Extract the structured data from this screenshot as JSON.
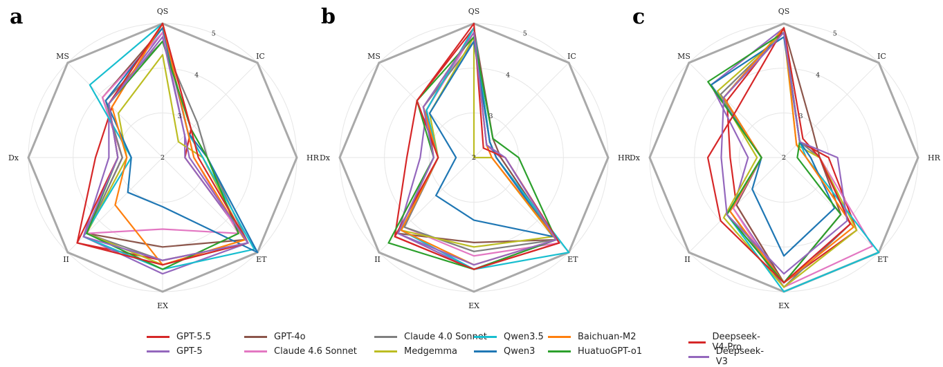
{
  "chart_data": [
    {
      "type": "radar",
      "panel": "a",
      "axes": [
        "QS",
        "IC",
        "HR",
        "ET",
        "EX",
        "II",
        "Dx",
        "MS"
      ],
      "radial_ticks": [
        "2",
        "3",
        "4",
        "5"
      ],
      "rlim": [
        2,
        5
      ],
      "grid": true,
      "series": [
        {
          "name": "GPT-5.5",
          "color": "#d62728",
          "values": [
            5.0,
            2.9,
            2.5,
            4.7,
            4.3,
            4.7,
            3.5,
            3.6
          ]
        },
        {
          "name": "GPT-5",
          "color": "#9467bd",
          "values": [
            4.8,
            2.7,
            2.5,
            4.7,
            4.6,
            4.5,
            3.2,
            3.7
          ]
        },
        {
          "name": "GPT-4o",
          "color": "#8c564b",
          "values": [
            4.9,
            2.8,
            2.9,
            4.6,
            4.0,
            4.4,
            2.9,
            3.9
          ]
        },
        {
          "name": "Claude 4.6 Sonnet",
          "color": "#e377c2",
          "values": [
            4.8,
            2.8,
            2.7,
            4.4,
            3.6,
            4.4,
            2.9,
            3.9
          ]
        },
        {
          "name": "Claude 4.0 Sonnet",
          "color": "#7f7f7f",
          "values": [
            4.6,
            3.1,
            3.0,
            4.7,
            4.3,
            4.4,
            2.9,
            3.8
          ]
        },
        {
          "name": "Medgemma",
          "color": "#bcbd22",
          "values": [
            4.3,
            2.5,
            2.9,
            4.6,
            4.4,
            4.4,
            2.8,
            3.4
          ]
        },
        {
          "name": "Qwen3.5",
          "color": "#17becf",
          "values": [
            5.0,
            2.8,
            2.9,
            4.9,
            4.5,
            4.5,
            2.7,
            4.3
          ]
        },
        {
          "name": "Qwen3",
          "color": "#1f77b4",
          "values": [
            4.9,
            2.8,
            3.0,
            5.0,
            3.1,
            3.1,
            2.7,
            3.8
          ]
        },
        {
          "name": "Baichuan-M2",
          "color": "#ff7f0e",
          "values": [
            5.0,
            2.8,
            2.7,
            4.6,
            4.4,
            3.5,
            2.8,
            3.6
          ]
        },
        {
          "name": "HuatuoGPT-o1",
          "color": "#2ca02c",
          "values": [
            4.6,
            2.9,
            3.0,
            4.4,
            4.5,
            4.4,
            3.0,
            3.7
          ]
        },
        {
          "name": "Deepseek-V4-Pro",
          "color": "#d62728",
          "values": [
            5.0,
            2.9,
            2.8,
            4.7,
            4.4,
            4.7,
            3.0,
            3.7
          ]
        },
        {
          "name": "Deepseek-V3",
          "color": "#9467bd",
          "values": [
            4.7,
            2.7,
            2.6,
            4.7,
            4.3,
            4.5,
            3.0,
            3.7
          ]
        }
      ]
    },
    {
      "type": "radar",
      "panel": "b",
      "axes": [
        "QS",
        "IC",
        "HR",
        "ET",
        "EX",
        "II",
        "Dx",
        "MS"
      ],
      "radial_ticks": [
        "2",
        "3",
        "4",
        "5"
      ],
      "rlim": [
        2,
        5
      ],
      "grid": true,
      "series": [
        {
          "name": "GPT-5.5",
          "color": "#d62728",
          "values": [
            4.9,
            2.5,
            2.5,
            4.7,
            4.5,
            4.5,
            3.5,
            3.8
          ]
        },
        {
          "name": "GPT-5",
          "color": "#9467bd",
          "values": [
            4.9,
            2.4,
            2.6,
            4.6,
            4.5,
            4.4,
            3.2,
            3.5
          ]
        },
        {
          "name": "GPT-4o",
          "color": "#8c564b",
          "values": [
            4.9,
            2.6,
            2.6,
            4.6,
            3.9,
            4.4,
            2.9,
            3.5
          ]
        },
        {
          "name": "Claude 4.6 Sonnet",
          "color": "#e377c2",
          "values": [
            4.8,
            2.4,
            2.4,
            4.7,
            4.2,
            4.2,
            2.8,
            3.5
          ]
        },
        {
          "name": "Claude 4.0 Sonnet",
          "color": "#7f7f7f",
          "values": [
            4.6,
            2.5,
            2.5,
            4.6,
            4.1,
            4.2,
            2.8,
            3.6
          ]
        },
        {
          "name": "Medgemma",
          "color": "#bcbd22",
          "values": [
            4.7,
            2.0,
            2.4,
            4.5,
            4.0,
            4.3,
            2.8,
            3.4
          ]
        },
        {
          "name": "Qwen3.5",
          "color": "#17becf",
          "values": [
            4.9,
            2.5,
            2.5,
            5.0,
            4.5,
            4.3,
            2.8,
            3.5
          ]
        },
        {
          "name": "Qwen3",
          "color": "#1f77b4",
          "values": [
            4.6,
            2.5,
            2.5,
            4.5,
            3.4,
            3.2,
            2.4,
            3.4
          ]
        },
        {
          "name": "Baichuan-M2",
          "color": "#ff7f0e",
          "values": [
            4.8,
            2.4,
            2.4,
            4.6,
            4.4,
            4.3,
            2.8,
            3.6
          ]
        },
        {
          "name": "HuatuoGPT-o1",
          "color": "#2ca02c",
          "values": [
            4.7,
            2.6,
            3.0,
            4.6,
            4.5,
            4.7,
            2.9,
            3.8
          ]
        },
        {
          "name": "Deepseek-V4-Pro",
          "color": "#d62728",
          "values": [
            5.0,
            2.3,
            2.7,
            4.7,
            4.5,
            4.5,
            2.8,
            3.8
          ]
        },
        {
          "name": "Deepseek-V3",
          "color": "#9467bd",
          "values": [
            4.8,
            2.4,
            2.7,
            4.6,
            4.4,
            4.4,
            2.9,
            3.6
          ]
        }
      ]
    },
    {
      "type": "radar",
      "panel": "c",
      "axes": [
        "QS",
        "IC",
        "HR",
        "ET",
        "EX",
        "II",
        "Dx",
        "MS"
      ],
      "radial_ticks": [
        "2",
        "3",
        "4",
        "5"
      ],
      "rlim": [
        2,
        5
      ],
      "grid": true,
      "series": [
        {
          "name": "GPT-5.5",
          "color": "#d62728",
          "values": [
            4.9,
            2.5,
            3.0,
            4.3,
            4.8,
            3.5,
            3.2,
            3.8
          ]
        },
        {
          "name": "GPT-5",
          "color": "#9467bd",
          "values": [
            4.9,
            2.5,
            2.8,
            4.1,
            4.8,
            3.6,
            2.8,
            4.3
          ]
        },
        {
          "name": "GPT-4o",
          "color": "#8c564b",
          "values": [
            4.9,
            2.9,
            2.8,
            3.8,
            4.8,
            3.5,
            2.5,
            3.9
          ]
        },
        {
          "name": "Claude 4.6 Sonnet",
          "color": "#e377c2",
          "values": [
            4.8,
            2.5,
            2.8,
            4.8,
            4.9,
            3.6,
            2.5,
            3.9
          ]
        },
        {
          "name": "Claude 4.0 Sonnet",
          "color": "#7f7f7f",
          "values": [
            4.8,
            2.5,
            2.8,
            4.1,
            4.9,
            3.7,
            2.5,
            4.0
          ]
        },
        {
          "name": "Medgemma",
          "color": "#bcbd22",
          "values": [
            4.8,
            2.4,
            2.8,
            4.3,
            4.9,
            3.9,
            2.6,
            4.1
          ]
        },
        {
          "name": "Qwen3.5",
          "color": "#17becf",
          "values": [
            4.9,
            2.5,
            2.5,
            5.0,
            5.0,
            3.8,
            2.5,
            3.9
          ]
        },
        {
          "name": "Qwen3",
          "color": "#1f77b4",
          "values": [
            4.7,
            2.5,
            2.6,
            3.6,
            4.2,
            3.0,
            2.5,
            4.3
          ]
        },
        {
          "name": "Baichuan-M2",
          "color": "#ff7f0e",
          "values": [
            4.9,
            2.4,
            2.5,
            4.2,
            4.8,
            3.7,
            2.5,
            3.9
          ]
        },
        {
          "name": "HuatuoGPT-o1",
          "color": "#2ca02c",
          "values": [
            4.8,
            2.5,
            2.3,
            3.8,
            4.8,
            3.8,
            2.5,
            4.4
          ]
        },
        {
          "name": "Deepseek-V4-Pro",
          "color": "#d62728",
          "values": [
            4.9,
            2.6,
            2.8,
            4.1,
            4.8,
            4.0,
            3.7,
            3.5
          ]
        },
        {
          "name": "Deepseek-V3",
          "color": "#9467bd",
          "values": [
            4.8,
            2.5,
            3.2,
            4.0,
            4.6,
            3.8,
            3.4,
            3.9
          ]
        }
      ]
    }
  ],
  "legend": {
    "items": [
      {
        "label": "GPT-5.5",
        "color": "#d62728"
      },
      {
        "label": "GPT-5",
        "color": "#9467bd"
      },
      {
        "label": "GPT-4o",
        "color": "#8c564b"
      },
      {
        "label": "Claude 4.6 Sonnet",
        "color": "#e377c2"
      },
      {
        "label": "Claude 4.0 Sonnet",
        "color": "#7f7f7f"
      },
      {
        "label": "Medgemma",
        "color": "#bcbd22"
      },
      {
        "label": "Qwen3.5",
        "color": "#17becf"
      },
      {
        "label": "Qwen3",
        "color": "#1f77b4"
      },
      {
        "label": "Baichuan-M2",
        "color": "#ff7f0e"
      },
      {
        "label": "HuatuoGPT-o1",
        "color": "#2ca02c"
      },
      {
        "label": "Deepseek-V4-Pro",
        "color": "#d62728"
      },
      {
        "label": "Deepseek-V3",
        "color": "#9467bd"
      }
    ]
  }
}
